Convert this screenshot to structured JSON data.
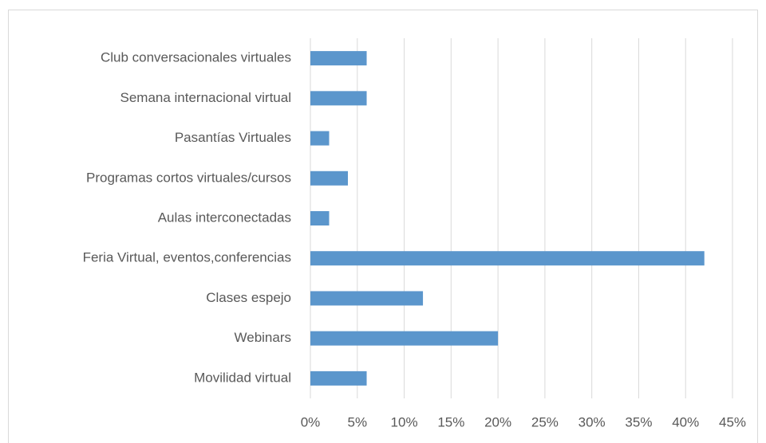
{
  "chart_data": {
    "type": "bar",
    "orientation": "horizontal",
    "categories": [
      "Club conversacionales virtuales",
      "Semana internacional virtual",
      "Pasantías Virtuales",
      "Programas cortos virtuales/cursos",
      "Aulas interconectadas",
      "Feria Virtual, eventos,conferencias",
      "Clases espejo",
      "Webinars",
      "Movilidad virtual"
    ],
    "values": [
      6,
      6,
      2,
      4,
      2,
      42,
      12,
      20,
      6
    ],
    "color": "#5b96cc",
    "xlim": [
      0,
      45
    ],
    "xticks": [
      {
        "value": 0,
        "label": "0%"
      },
      {
        "value": 5,
        "label": "5%"
      },
      {
        "value": 10,
        "label": "10%"
      },
      {
        "value": 15,
        "label": "15%"
      },
      {
        "value": 20,
        "label": "20%"
      },
      {
        "value": 25,
        "label": "25%"
      },
      {
        "value": 30,
        "label": "30%"
      },
      {
        "value": 35,
        "label": "35%"
      },
      {
        "value": 40,
        "label": "40%"
      },
      {
        "value": 45,
        "label": "45%"
      }
    ],
    "grid": true
  }
}
